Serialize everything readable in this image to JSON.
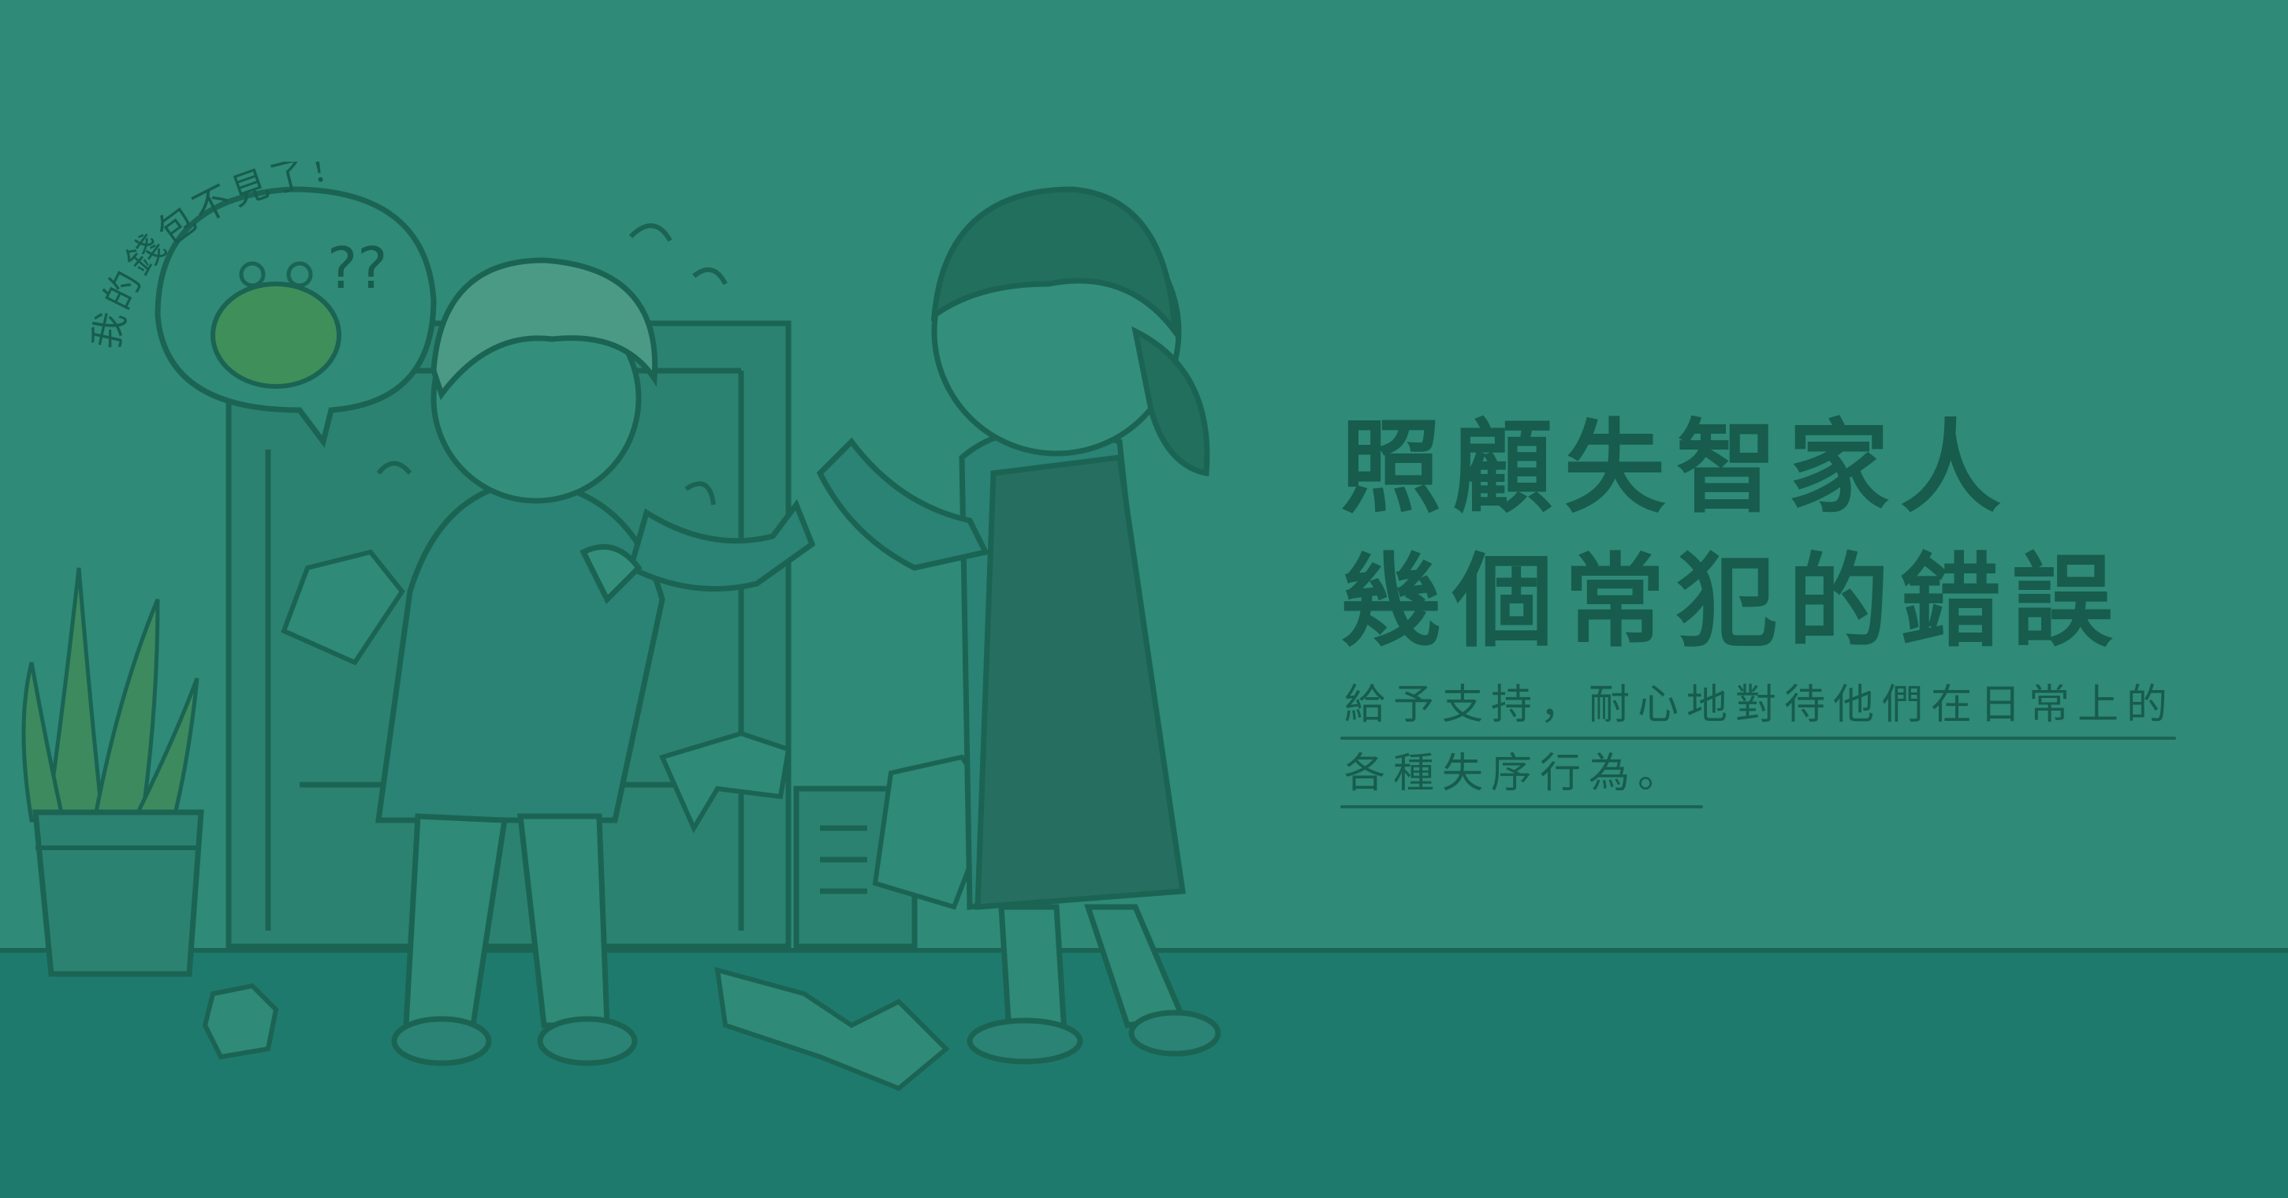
{
  "title": {
    "line1": "照顧失智家人",
    "line2": "幾個常犯的錯誤"
  },
  "subtitle": {
    "line1": "給予支持，耐心地對待他們在日常上的",
    "line2": "各種失序行為。"
  },
  "speech_bubble": {
    "text": "我的錢包不見了！",
    "thought_marks": "??"
  },
  "colors": {
    "background": "#2f8a78",
    "floor": "#1f7a6e",
    "text": "#175c4c",
    "outline": "#1b6453"
  },
  "icons": [
    "purse-icon",
    "potted-plant-icon",
    "door-icon"
  ]
}
